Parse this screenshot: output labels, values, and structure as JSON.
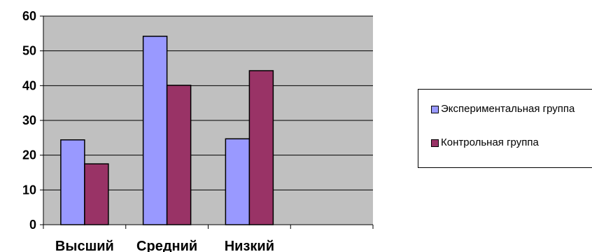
{
  "chart_data": {
    "type": "bar",
    "categories": [
      "Высший",
      "Средний",
      "Низкий",
      ""
    ],
    "series": [
      {
        "name": "Экспериментальная группа",
        "values": [
          24.4,
          54.2,
          24.7,
          null
        ],
        "color": "#9999FF"
      },
      {
        "name": "Контрольная группа",
        "values": [
          17.5,
          40.1,
          44.3,
          null
        ],
        "color": "#993366"
      }
    ],
    "title": "",
    "xlabel": "",
    "ylabel": "",
    "ylim": [
      0,
      60
    ],
    "yticks": [
      0,
      10,
      20,
      30,
      40,
      50,
      60
    ],
    "grid": true,
    "plot_background": "#C0C0C0",
    "legend_position": "right"
  }
}
